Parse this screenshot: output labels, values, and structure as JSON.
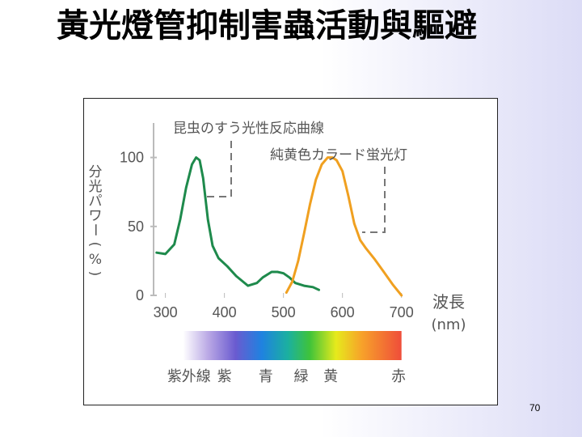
{
  "slide": {
    "title": "黃光燈管抑制害蟲活動與驅避",
    "page_number": "70"
  },
  "chart_data": {
    "type": "line",
    "xlabel": "波長(nm)",
    "ylabel": "分光パワー(%)",
    "x_ticks": [
      "300",
      "400",
      "500",
      "600",
      "700"
    ],
    "y_ticks": [
      "0",
      "50",
      "100"
    ],
    "xlim": [
      280,
      710
    ],
    "ylim": [
      0,
      125
    ],
    "series": [
      {
        "name": "昆虫のすう光性反応曲線",
        "color": "#1e8a4c",
        "x": [
          285,
          300,
          315,
          325,
          335,
          345,
          352,
          358,
          364,
          372,
          380,
          390,
          405,
          420,
          440,
          455,
          465,
          480,
          490,
          500,
          510,
          520,
          535,
          550,
          560
        ],
        "y": [
          31,
          30,
          37,
          55,
          78,
          95,
          100,
          98,
          85,
          55,
          36,
          27,
          21,
          14,
          7,
          9,
          13,
          17,
          17,
          16,
          13,
          9,
          7,
          6,
          4
        ]
      },
      {
        "name": "純黄色カラード蛍光灯",
        "color": "#f0a020",
        "x": [
          505,
          515,
          525,
          535,
          545,
          555,
          565,
          575,
          583,
          590,
          600,
          610,
          620,
          630,
          640,
          655,
          670,
          685,
          700
        ],
        "y": [
          2,
          10,
          25,
          45,
          66,
          84,
          95,
          100,
          100,
          98,
          90,
          72,
          52,
          40,
          34,
          26,
          17,
          8,
          0
        ]
      }
    ],
    "spectrum_labels": [
      {
        "text": "紫外線",
        "x": 340
      },
      {
        "text": "紫",
        "x": 400
      },
      {
        "text": "青",
        "x": 470
      },
      {
        "text": "緑",
        "x": 530
      },
      {
        "text": "黄",
        "x": 580
      },
      {
        "text": "赤",
        "x": 695
      }
    ],
    "spectrum_range": [
      330,
      700
    ]
  }
}
